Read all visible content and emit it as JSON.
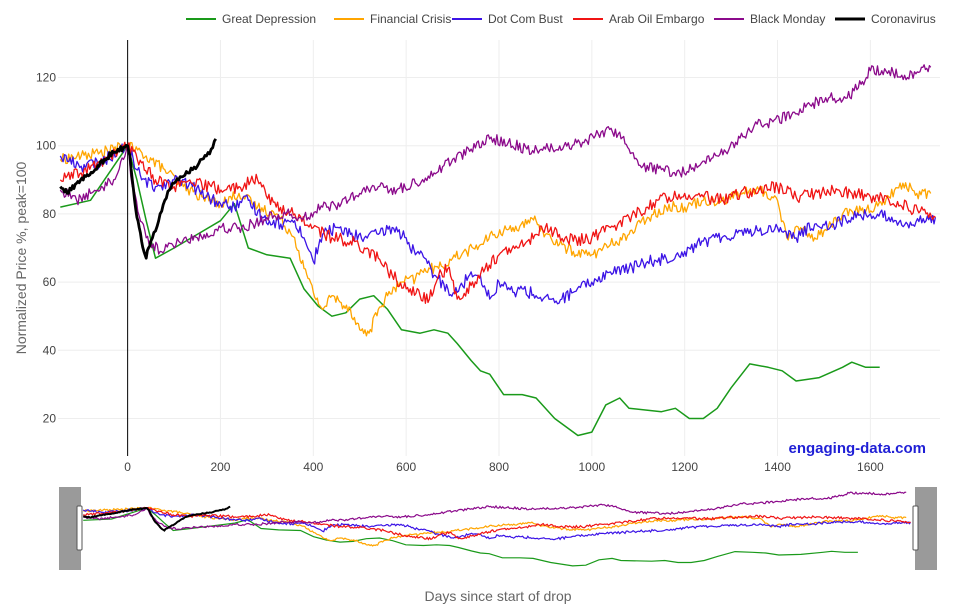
{
  "chart_data": {
    "type": "line",
    "xlabel": "Days since start of drop",
    "ylabel": "Normalized Price %, peak=100",
    "xlim": [
      -150,
      1750
    ],
    "ylim": [
      9,
      131
    ],
    "x_ticks": [
      0,
      200,
      400,
      600,
      800,
      1000,
      1200,
      1400,
      1600
    ],
    "y_ticks": [
      20,
      40,
      60,
      80,
      100,
      120
    ],
    "grid": true,
    "legend_position": "top",
    "watermark": "engaging-data.com",
    "range_slider": true,
    "series": [
      {
        "name": "Great Depression",
        "color": "#1a9a1a",
        "width": 1.5,
        "noise": 0,
        "points": [
          [
            -145,
            82
          ],
          [
            -80,
            84
          ],
          [
            0,
            100
          ],
          [
            20,
            90
          ],
          [
            40,
            78
          ],
          [
            60,
            67
          ],
          [
            100,
            70
          ],
          [
            150,
            74
          ],
          [
            200,
            78
          ],
          [
            230,
            83
          ],
          [
            260,
            70
          ],
          [
            300,
            68
          ],
          [
            350,
            67
          ],
          [
            380,
            58
          ],
          [
            410,
            53
          ],
          [
            440,
            50
          ],
          [
            470,
            51
          ],
          [
            500,
            55
          ],
          [
            530,
            56
          ],
          [
            560,
            52
          ],
          [
            590,
            46
          ],
          [
            630,
            45
          ],
          [
            660,
            46
          ],
          [
            690,
            45
          ],
          [
            710,
            42
          ],
          [
            740,
            37
          ],
          [
            760,
            34
          ],
          [
            780,
            33
          ],
          [
            810,
            27
          ],
          [
            850,
            27
          ],
          [
            880,
            26
          ],
          [
            920,
            20
          ],
          [
            970,
            15
          ],
          [
            1000,
            16
          ],
          [
            1030,
            24
          ],
          [
            1060,
            26
          ],
          [
            1080,
            23
          ],
          [
            1150,
            22
          ],
          [
            1180,
            23
          ],
          [
            1210,
            20
          ],
          [
            1240,
            20
          ],
          [
            1270,
            23
          ],
          [
            1300,
            29
          ],
          [
            1340,
            36
          ],
          [
            1380,
            35
          ],
          [
            1410,
            34
          ],
          [
            1440,
            31
          ],
          [
            1490,
            32
          ],
          [
            1540,
            35
          ],
          [
            1560,
            36.5
          ],
          [
            1590,
            35
          ],
          [
            1620,
            35
          ]
        ]
      },
      {
        "name": "Financial Crisis",
        "color": "#ffa500",
        "width": 1.3,
        "noise": 1.6,
        "points": [
          [
            -145,
            96
          ],
          [
            -100,
            97
          ],
          [
            -60,
            98
          ],
          [
            0,
            100
          ],
          [
            40,
            97
          ],
          [
            80,
            93
          ],
          [
            120,
            88
          ],
          [
            160,
            85
          ],
          [
            200,
            83
          ],
          [
            240,
            86
          ],
          [
            280,
            82
          ],
          [
            320,
            80
          ],
          [
            360,
            73
          ],
          [
            380,
            64
          ],
          [
            400,
            57
          ],
          [
            420,
            52
          ],
          [
            440,
            56
          ],
          [
            460,
            54
          ],
          [
            480,
            52
          ],
          [
            500,
            46
          ],
          [
            520,
            45
          ],
          [
            540,
            52
          ],
          [
            560,
            56
          ],
          [
            590,
            60
          ],
          [
            620,
            61
          ],
          [
            640,
            64
          ],
          [
            670,
            64
          ],
          [
            700,
            67
          ],
          [
            730,
            69
          ],
          [
            760,
            71
          ],
          [
            790,
            74
          ],
          [
            810,
            75
          ],
          [
            830,
            76
          ],
          [
            860,
            77
          ],
          [
            880,
            78
          ],
          [
            900,
            74
          ],
          [
            930,
            71
          ],
          [
            960,
            69
          ],
          [
            1000,
            68
          ],
          [
            1040,
            71
          ],
          [
            1080,
            74
          ],
          [
            1120,
            79
          ],
          [
            1160,
            82
          ],
          [
            1200,
            82
          ],
          [
            1240,
            84
          ],
          [
            1280,
            84
          ],
          [
            1320,
            86
          ],
          [
            1360,
            87
          ],
          [
            1400,
            84
          ],
          [
            1420,
            73
          ],
          [
            1450,
            76
          ],
          [
            1480,
            73
          ],
          [
            1500,
            75
          ],
          [
            1540,
            80
          ],
          [
            1580,
            81
          ],
          [
            1610,
            82
          ],
          [
            1640,
            85
          ],
          [
            1670,
            89
          ],
          [
            1700,
            86
          ],
          [
            1730,
            86
          ]
        ]
      },
      {
        "name": "Dot Com Bust",
        "color": "#3c14e6",
        "width": 1.3,
        "noise": 1.8,
        "points": [
          [
            -145,
            97
          ],
          [
            -100,
            94
          ],
          [
            -60,
            95
          ],
          [
            0,
            100
          ],
          [
            30,
            90
          ],
          [
            60,
            88
          ],
          [
            100,
            90
          ],
          [
            140,
            88
          ],
          [
            170,
            85
          ],
          [
            200,
            83
          ],
          [
            230,
            82
          ],
          [
            260,
            84
          ],
          [
            290,
            79
          ],
          [
            330,
            77
          ],
          [
            360,
            78
          ],
          [
            380,
            73
          ],
          [
            400,
            66
          ],
          [
            420,
            74
          ],
          [
            450,
            76
          ],
          [
            480,
            74
          ],
          [
            510,
            73
          ],
          [
            540,
            74
          ],
          [
            570,
            76
          ],
          [
            600,
            73
          ],
          [
            620,
            68
          ],
          [
            640,
            67
          ],
          [
            660,
            62
          ],
          [
            690,
            58
          ],
          [
            710,
            57
          ],
          [
            740,
            63
          ],
          [
            760,
            62
          ],
          [
            780,
            55
          ],
          [
            800,
            60
          ],
          [
            830,
            57
          ],
          [
            850,
            58
          ],
          [
            880,
            56
          ],
          [
            920,
            54
          ],
          [
            960,
            57
          ],
          [
            1000,
            60
          ],
          [
            1040,
            63
          ],
          [
            1080,
            64
          ],
          [
            1120,
            66
          ],
          [
            1160,
            67
          ],
          [
            1200,
            69
          ],
          [
            1240,
            72
          ],
          [
            1280,
            73
          ],
          [
            1320,
            75
          ],
          [
            1360,
            75
          ],
          [
            1400,
            76
          ],
          [
            1440,
            73
          ],
          [
            1480,
            77
          ],
          [
            1520,
            77
          ],
          [
            1560,
            79
          ],
          [
            1600,
            80
          ],
          [
            1640,
            79
          ],
          [
            1680,
            77
          ],
          [
            1720,
            78
          ],
          [
            1740,
            79
          ]
        ]
      },
      {
        "name": "Arab Oil Embargo",
        "color": "#f01414",
        "width": 1.3,
        "noise": 1.8,
        "points": [
          [
            -145,
            90
          ],
          [
            -100,
            92
          ],
          [
            -60,
            95
          ],
          [
            0,
            100
          ],
          [
            30,
            95
          ],
          [
            60,
            90
          ],
          [
            100,
            88
          ],
          [
            140,
            89
          ],
          [
            180,
            88
          ],
          [
            210,
            87
          ],
          [
            240,
            88
          ],
          [
            280,
            90
          ],
          [
            320,
            82
          ],
          [
            360,
            80
          ],
          [
            400,
            76
          ],
          [
            440,
            73
          ],
          [
            480,
            72
          ],
          [
            510,
            70
          ],
          [
            540,
            67
          ],
          [
            570,
            62
          ],
          [
            600,
            58
          ],
          [
            630,
            56
          ],
          [
            650,
            55
          ],
          [
            670,
            62
          ],
          [
            690,
            64
          ],
          [
            710,
            55
          ],
          [
            740,
            59
          ],
          [
            770,
            64
          ],
          [
            800,
            68
          ],
          [
            840,
            70
          ],
          [
            880,
            74
          ],
          [
            900,
            76
          ],
          [
            930,
            74
          ],
          [
            960,
            72
          ],
          [
            1000,
            73
          ],
          [
            1040,
            76
          ],
          [
            1080,
            79
          ],
          [
            1120,
            82
          ],
          [
            1160,
            85
          ],
          [
            1200,
            86
          ],
          [
            1240,
            85
          ],
          [
            1280,
            84
          ],
          [
            1320,
            86
          ],
          [
            1360,
            87
          ],
          [
            1400,
            88
          ],
          [
            1440,
            85
          ],
          [
            1480,
            86
          ],
          [
            1520,
            87
          ],
          [
            1560,
            86
          ],
          [
            1600,
            85
          ],
          [
            1640,
            84
          ],
          [
            1680,
            82
          ],
          [
            1720,
            80
          ],
          [
            1740,
            79
          ]
        ]
      },
      {
        "name": "Black Monday",
        "color": "#8b0a8b",
        "width": 1.3,
        "noise": 1.6,
        "points": [
          [
            -145,
            87
          ],
          [
            -110,
            84
          ],
          [
            -80,
            86
          ],
          [
            -30,
            90
          ],
          [
            0,
            100
          ],
          [
            10,
            88
          ],
          [
            40,
            73
          ],
          [
            70,
            69
          ],
          [
            110,
            72
          ],
          [
            150,
            73
          ],
          [
            200,
            76
          ],
          [
            240,
            76
          ],
          [
            270,
            77
          ],
          [
            300,
            79
          ],
          [
            340,
            80
          ],
          [
            380,
            79
          ],
          [
            420,
            82
          ],
          [
            460,
            83
          ],
          [
            500,
            86
          ],
          [
            540,
            88
          ],
          [
            580,
            87
          ],
          [
            620,
            89
          ],
          [
            660,
            92
          ],
          [
            700,
            96
          ],
          [
            740,
            99
          ],
          [
            780,
            102
          ],
          [
            820,
            101
          ],
          [
            860,
            99
          ],
          [
            900,
            99
          ],
          [
            940,
            100
          ],
          [
            980,
            101
          ],
          [
            1020,
            104
          ],
          [
            1060,
            104
          ],
          [
            1080,
            99
          ],
          [
            1110,
            94
          ],
          [
            1150,
            93
          ],
          [
            1190,
            92
          ],
          [
            1230,
            94
          ],
          [
            1270,
            97
          ],
          [
            1310,
            101
          ],
          [
            1350,
            106
          ],
          [
            1390,
            107
          ],
          [
            1430,
            109
          ],
          [
            1470,
            112
          ],
          [
            1510,
            114
          ],
          [
            1550,
            114
          ],
          [
            1580,
            118
          ],
          [
            1600,
            122
          ],
          [
            1640,
            122
          ],
          [
            1680,
            120
          ],
          [
            1710,
            123
          ],
          [
            1730,
            123
          ]
        ]
      },
      {
        "name": "Coronavirus",
        "color": "#000000",
        "width": 2.8,
        "noise": 0.8,
        "points": [
          [
            -145,
            88
          ],
          [
            -130,
            86
          ],
          [
            -110,
            89
          ],
          [
            -90,
            91
          ],
          [
            -70,
            93
          ],
          [
            -50,
            96
          ],
          [
            -30,
            98
          ],
          [
            0,
            100
          ],
          [
            5,
            97
          ],
          [
            10,
            90
          ],
          [
            15,
            84
          ],
          [
            20,
            79
          ],
          [
            25,
            76
          ],
          [
            30,
            72
          ],
          [
            35,
            69
          ],
          [
            40,
            67
          ],
          [
            45,
            70
          ],
          [
            50,
            72
          ],
          [
            60,
            75
          ],
          [
            70,
            80
          ],
          [
            80,
            84
          ],
          [
            90,
            87
          ],
          [
            100,
            89
          ],
          [
            110,
            90
          ],
          [
            120,
            91
          ],
          [
            130,
            92
          ],
          [
            140,
            93
          ],
          [
            150,
            94
          ],
          [
            160,
            96
          ],
          [
            170,
            97
          ],
          [
            180,
            99
          ],
          [
            190,
            102
          ]
        ]
      }
    ]
  }
}
